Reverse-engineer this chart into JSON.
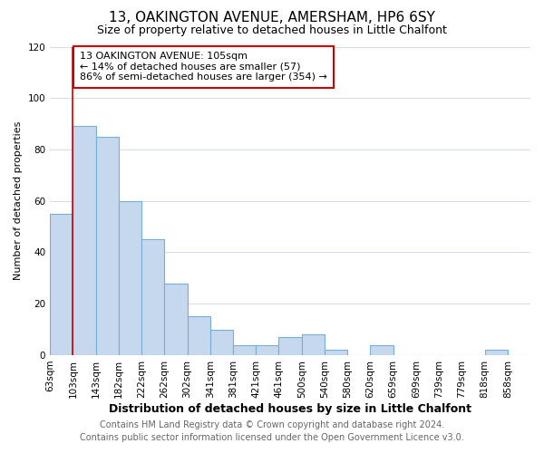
{
  "title": "13, OAKINGTON AVENUE, AMERSHAM, HP6 6SY",
  "subtitle": "Size of property relative to detached houses in Little Chalfont",
  "xlabel": "Distribution of detached houses by size in Little Chalfont",
  "ylabel": "Number of detached properties",
  "footer_line1": "Contains HM Land Registry data © Crown copyright and database right 2024.",
  "footer_line2": "Contains public sector information licensed under the Open Government Licence v3.0.",
  "bin_labels": [
    "63sqm",
    "103sqm",
    "143sqm",
    "182sqm",
    "222sqm",
    "262sqm",
    "302sqm",
    "341sqm",
    "381sqm",
    "421sqm",
    "461sqm",
    "500sqm",
    "540sqm",
    "580sqm",
    "620sqm",
    "659sqm",
    "699sqm",
    "739sqm",
    "779sqm",
    "818sqm",
    "858sqm"
  ],
  "bar_values": [
    55,
    89,
    85,
    60,
    45,
    28,
    15,
    10,
    4,
    4,
    7,
    8,
    2,
    0,
    4,
    0,
    0,
    0,
    0,
    2,
    0
  ],
  "bar_color": "#c5d8ed",
  "bar_edge_color": "#7aafd4",
  "ylim": [
    0,
    120
  ],
  "yticks": [
    0,
    20,
    40,
    60,
    80,
    100,
    120
  ],
  "vline_x": 1,
  "vline_color": "#cc0000",
  "annotation_title": "13 OAKINGTON AVENUE: 105sqm",
  "annotation_line1": "← 14% of detached houses are smaller (57)",
  "annotation_line2": "86% of semi-detached houses are larger (354) →",
  "annotation_box_color": "#ffffff",
  "annotation_box_edge_color": "#cc0000",
  "bg_color": "#ffffff",
  "grid_color": "#d0dcea",
  "title_fontsize": 11,
  "subtitle_fontsize": 9,
  "annotation_fontsize": 8,
  "ylabel_fontsize": 8,
  "xlabel_fontsize": 9,
  "tick_fontsize": 7.5,
  "footer_fontsize": 7
}
